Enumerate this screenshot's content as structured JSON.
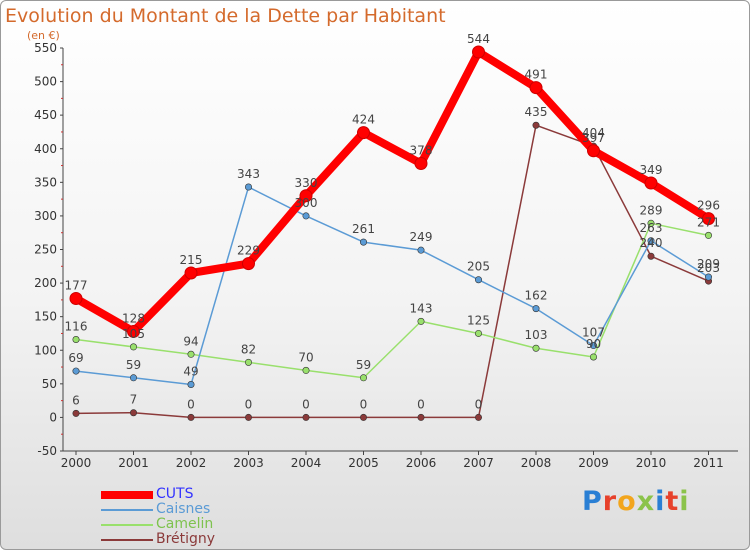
{
  "header": {
    "title": "Evolution du Montant de la Dette par Habitant",
    "subtitle": "(en €)"
  },
  "brand": {
    "logo_text": "Proxiti",
    "letter_colors": [
      "#2a7fd4",
      "#e7412b",
      "#f2a51c",
      "#8bc34a",
      "#2a7fd4",
      "#e7412b",
      "#8bc34a"
    ]
  },
  "chart_data": {
    "type": "line",
    "title": "Evolution du Montant de la Dette par Habitant",
    "subtitle": "(en €)",
    "xlabel": "",
    "ylabel": "",
    "x": [
      "2000",
      "2001",
      "2002",
      "2003",
      "2004",
      "2005",
      "2006",
      "2007",
      "2008",
      "2009",
      "2010",
      "2011"
    ],
    "yticks": [
      -50,
      0,
      50,
      100,
      150,
      200,
      250,
      300,
      350,
      400,
      450,
      500,
      550
    ],
    "ylim": [
      -50,
      550
    ],
    "grid": false,
    "legend_position": "bottom-left",
    "series": [
      {
        "name": "CUTS",
        "values": [
          177,
          128,
          215,
          229,
          330,
          424,
          378,
          544,
          491,
          397,
          349,
          296
        ],
        "labels": [
          "177",
          "128",
          "215",
          "229",
          "330",
          "424",
          "378",
          "544",
          "491",
          "397",
          "349",
          "296"
        ],
        "color": "#ff0000",
        "legend_color": "#3333ff"
      },
      {
        "name": "Caisnes",
        "values": [
          69,
          59,
          49,
          343,
          300,
          261,
          249,
          205,
          162,
          107,
          263,
          209
        ],
        "labels": [
          "69",
          "59",
          "49",
          "343",
          "300",
          "261",
          "249",
          "205",
          "162",
          "107",
          "263",
          "209"
        ],
        "color": "#5b9bd5",
        "legend_color": "#5b9bd5"
      },
      {
        "name": "Camelin",
        "values": [
          116,
          105,
          94,
          82,
          70,
          59,
          143,
          125,
          103,
          90,
          289,
          271
        ],
        "labels": [
          "116",
          "105",
          "94",
          "82",
          "70",
          "59",
          "143",
          "125",
          "103",
          "90",
          "289",
          "271"
        ],
        "color": "#99e06c",
        "legend_color": "#7ec24e"
      },
      {
        "name": "Brétigny",
        "values": [
          6,
          7,
          0,
          0,
          0,
          0,
          0,
          0,
          435,
          404,
          240,
          203
        ],
        "labels": [
          "6",
          "7",
          "0",
          "0",
          "0",
          "0",
          "0",
          "0",
          "435",
          "404",
          "240",
          "203"
        ],
        "color": "#8b3a3a",
        "legend_color": "#8b3a3a"
      }
    ]
  }
}
